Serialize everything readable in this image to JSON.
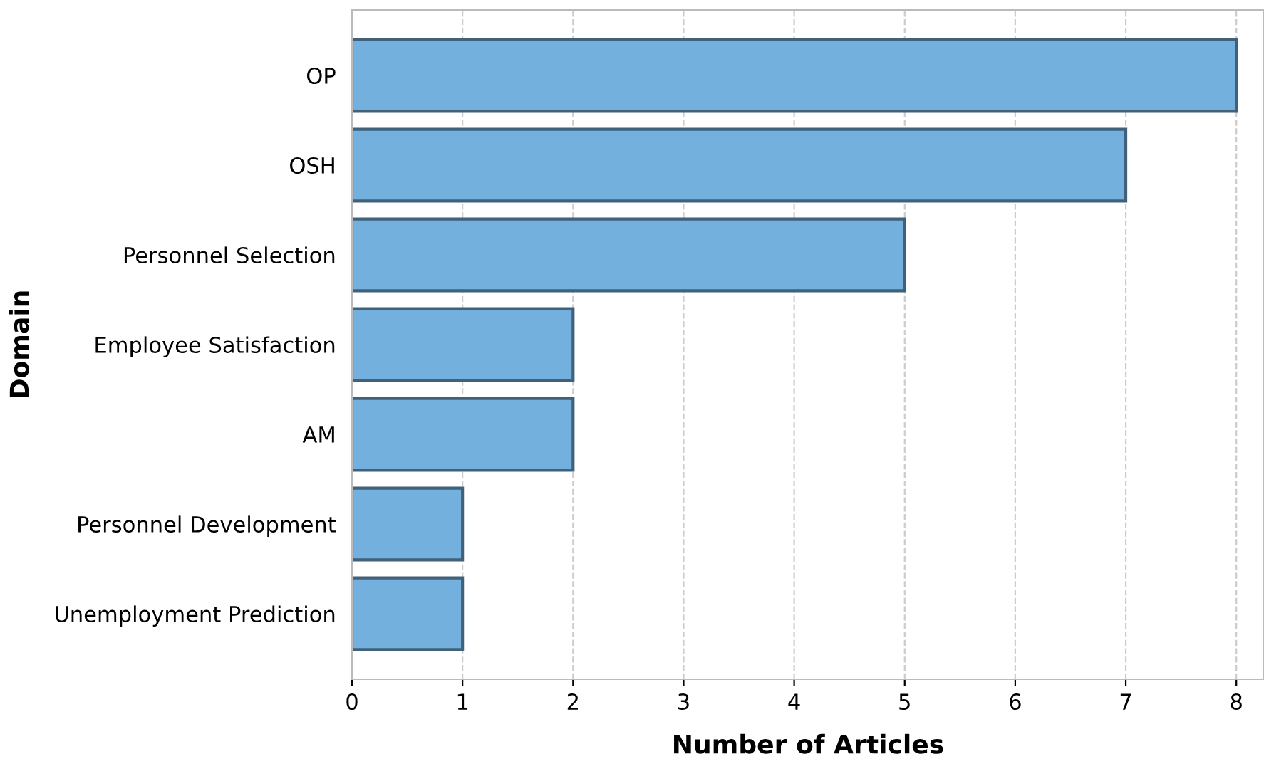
{
  "chart_data": {
    "type": "bar",
    "orientation": "horizontal",
    "xlabel": "Number of Articles",
    "ylabel": "Domain",
    "categories": [
      "OP",
      "OSH",
      "Personnel Selection",
      "Employee Satisfaction",
      "AM",
      "Personnel Development",
      "Unemployment Prediction"
    ],
    "values": [
      8,
      7,
      5,
      2,
      2,
      1,
      1
    ],
    "color": "#74b0de",
    "xlim": [
      0,
      8.25
    ],
    "xticks": [
      0,
      1,
      2,
      3,
      4,
      5,
      6,
      7,
      8
    ],
    "grid": "x",
    "legend": false
  }
}
